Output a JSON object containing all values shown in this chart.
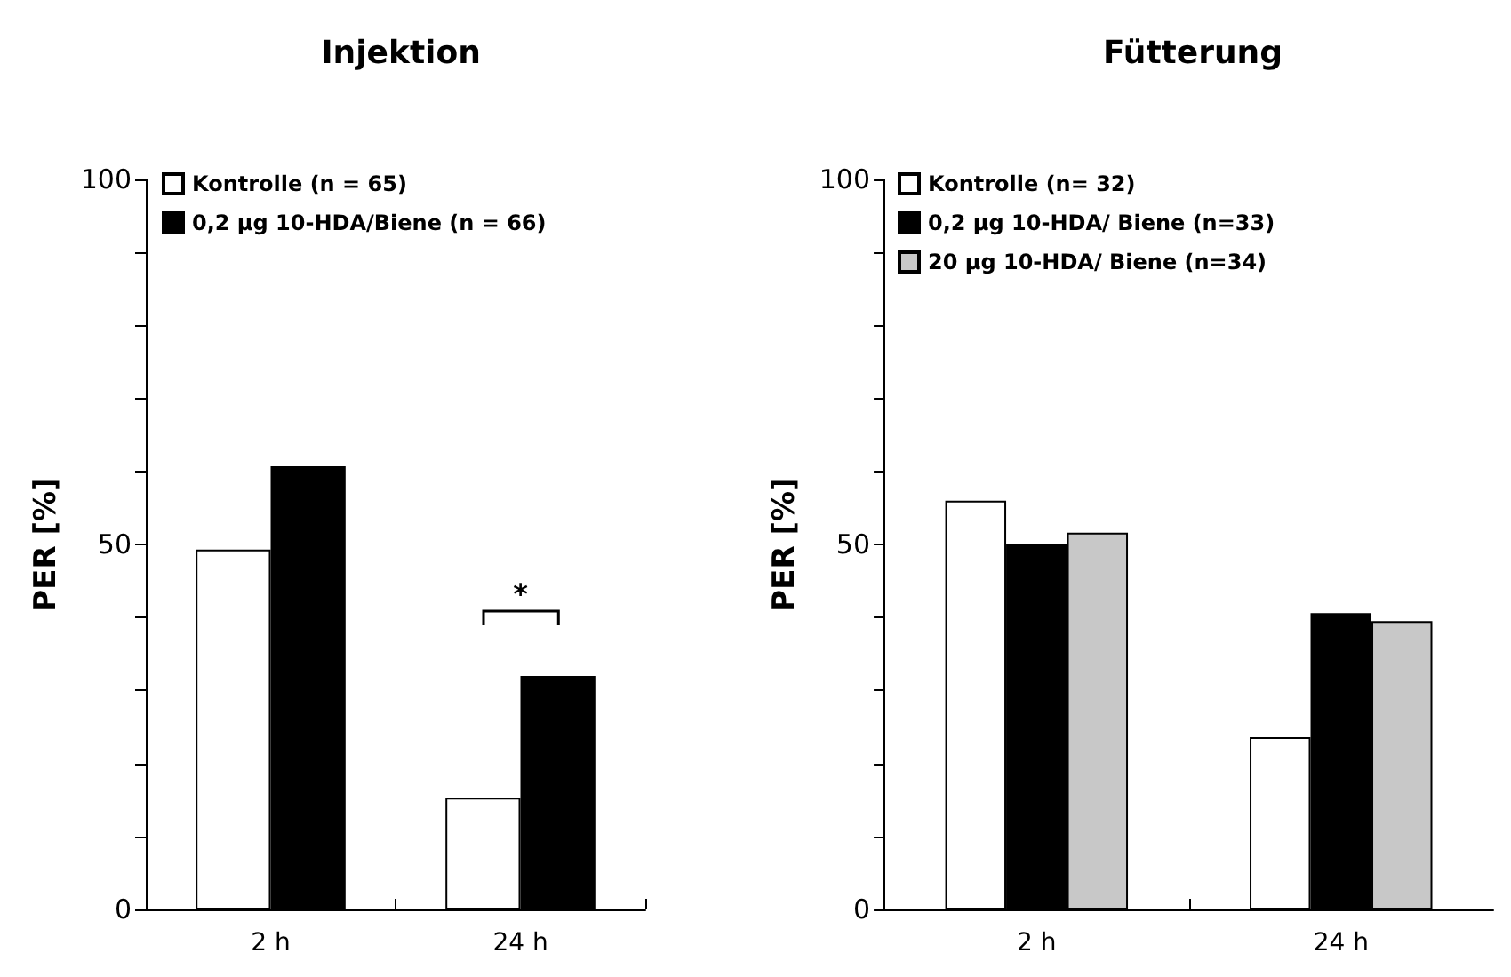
{
  "chart_data": [
    {
      "type": "bar",
      "title": "Injektion",
      "ylabel": "PER [%]",
      "categories": [
        "2 h",
        "24 h"
      ],
      "series": [
        {
          "name": "Kontrolle (n = 65)",
          "color": "#ffffff",
          "values": [
            49.3,
            15.3
          ]
        },
        {
          "name": "0,2 µg 10-HDA/Biene (n = 66)",
          "color": "#000000",
          "values": [
            60.7,
            32.0
          ]
        }
      ],
      "ylim": [
        0,
        100
      ],
      "yticks": [
        0,
        {
          "value": 10,
          "label": null
        },
        {
          "value": 20,
          "label": null
        },
        {
          "value": 30,
          "label": null
        },
        {
          "value": 40,
          "label": null
        },
        50,
        {
          "value": 60,
          "label": null
        },
        {
          "value": 70,
          "label": null
        },
        {
          "value": 80,
          "label": null
        },
        {
          "value": 90,
          "label": null
        },
        100
      ],
      "annotations": [
        "*"
      ],
      "legend": "top left",
      "grid": false
    },
    {
      "type": "bar",
      "title": "Fütterung",
      "ylabel": "PER [%]",
      "categories": [
        "2 h",
        "24 h"
      ],
      "series": [
        {
          "name": "Kontrolle (n= 32)",
          "color": "#ffffff",
          "values": [
            56.0,
            23.6
          ]
        },
        {
          "name": "0,2 µg 10-HDA/ Biene (n=33)",
          "color": "#000000",
          "values": [
            50.0,
            40.6
          ]
        },
        {
          "name": "20 µg 10-HDA/ Biene (n=34)",
          "color": "#c8c8c8",
          "values": [
            51.6,
            39.5
          ]
        }
      ],
      "ylim": [
        0,
        100
      ],
      "yticks": [
        0,
        {
          "value": 10,
          "label": null
        },
        {
          "value": 20,
          "label": null
        },
        {
          "value": 30,
          "label": null
        },
        {
          "value": 40,
          "label": null
        },
        50,
        {
          "value": 60,
          "label": null
        },
        {
          "value": 70,
          "label": null
        },
        {
          "value": 80,
          "label": null
        },
        {
          "value": 90,
          "label": null
        },
        100
      ],
      "legend": "top left",
      "grid": false
    }
  ]
}
